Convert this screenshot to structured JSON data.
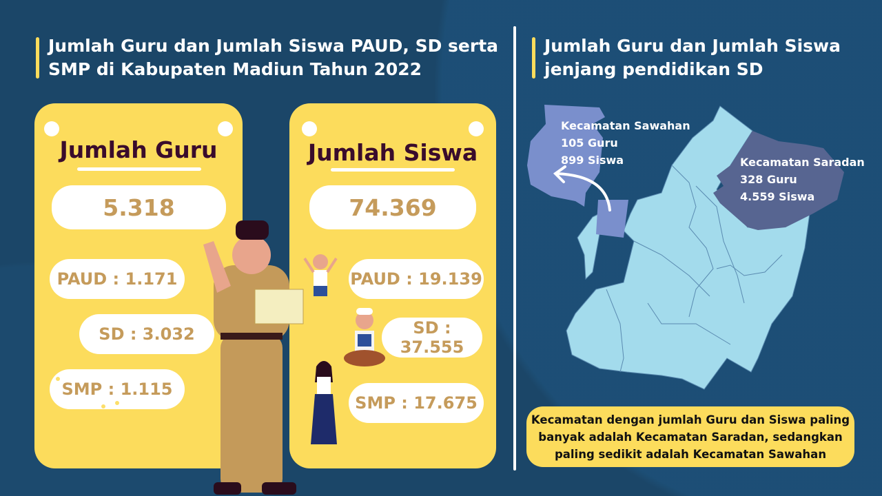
{
  "left": {
    "title_line1": "Jumlah Guru dan Jumlah Siswa PAUD, SD serta",
    "title_line2": "SMP di Kabupaten Madiun Tahun 2022",
    "guru": {
      "heading": "Jumlah Guru",
      "total": "5.318",
      "paud": "PAUD : 1.171",
      "sd": "SD : 3.032",
      "smp": "SMP : 1.115"
    },
    "siswa": {
      "heading": "Jumlah Siswa",
      "total": "74.369",
      "paud": "PAUD : 19.139",
      "sd": "SD : 37.555",
      "smp": "SMP : 17.675"
    }
  },
  "right": {
    "title_line1": "Jumlah Guru dan Jumlah Siswa",
    "title_line2": "jenjang pendidikan SD",
    "sawahan": {
      "name": "Kecamatan Sawahan",
      "guru": "105 Guru",
      "siswa": "899 Siswa"
    },
    "saradan": {
      "name": "Kecamatan Saradan",
      "guru": "328 Guru",
      "siswa": "4.559 Siswa"
    },
    "note_line1": "Kecamatan dengan jumlah Guru dan Siswa paling",
    "note_line2": "banyak adalah Kecamatan Saradan, sedangkan",
    "note_line3": "paling sedikit adalah Kecamatan Sawahan"
  },
  "colors": {
    "background": "#1b4668",
    "card": "#fcdc5c",
    "value_text": "#c59b5b",
    "heading_text": "#3a0c2c",
    "map_base": "#a3dbec",
    "map_sawahan": "#7a8fcc",
    "map_saradan": "#576591"
  }
}
